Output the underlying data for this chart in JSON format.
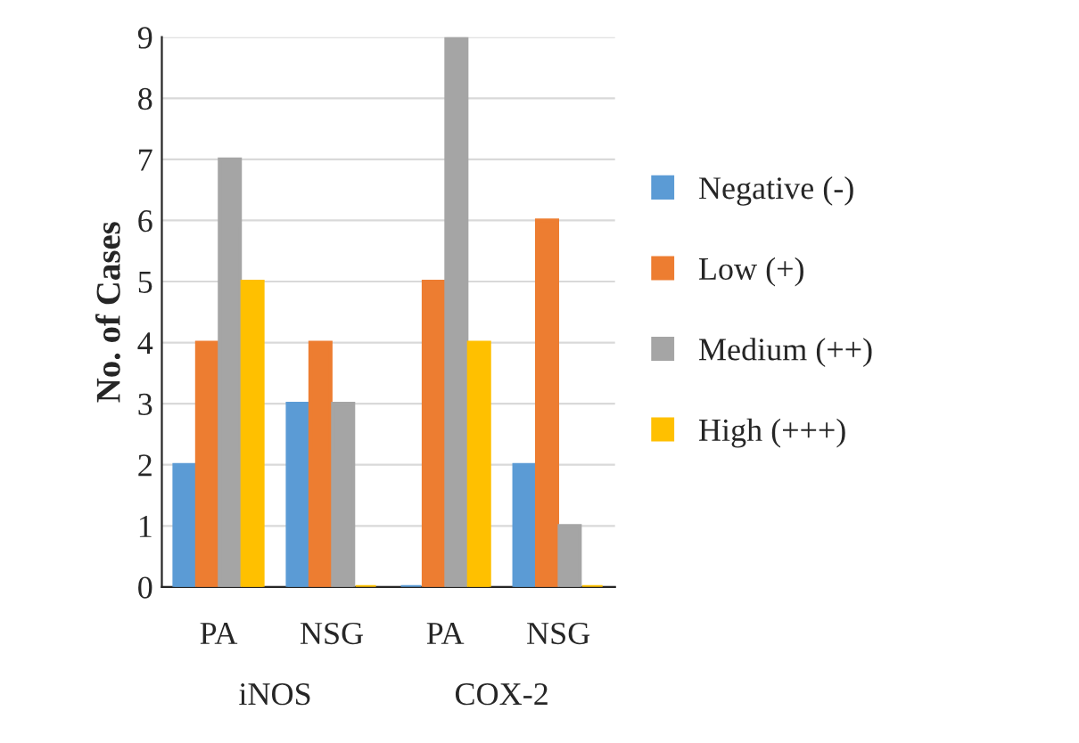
{
  "chart_data": {
    "type": "bar",
    "ylabel": "No. of Cases",
    "categories": [
      "PA",
      "NSG",
      "PA",
      "NSG"
    ],
    "annotations": [
      "iNOS",
      "COX-2"
    ],
    "series": [
      {
        "name": "Negative (-)",
        "color": "#5b9bd5",
        "values": [
          2,
          3,
          0,
          2
        ]
      },
      {
        "name": "Low (+)",
        "color": "#ed7d31",
        "values": [
          4,
          4,
          5,
          6
        ]
      },
      {
        "name": "Medium (++)",
        "color": "#a5a5a5",
        "values": [
          7,
          3,
          9,
          1
        ]
      },
      {
        "name": "High (+++)",
        "color": "#ffc000",
        "values": [
          5,
          0,
          4,
          0
        ]
      }
    ],
    "ylim": [
      0,
      9
    ],
    "yticks": [
      0,
      1,
      2,
      3,
      4,
      5,
      6,
      7,
      8,
      9
    ],
    "grid": "y",
    "legend": "right"
  }
}
